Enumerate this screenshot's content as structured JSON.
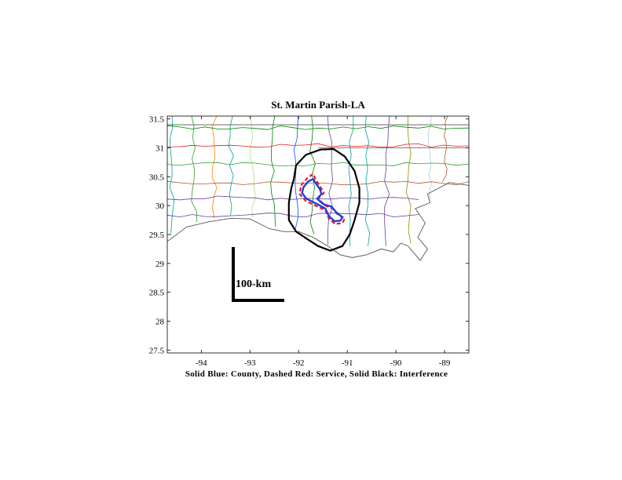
{
  "title": "St. Martin Parish-LA",
  "caption": "Solid Blue: County, Dashed Red: Service, Solid Black: Interference",
  "scale_bar_label": "100-km",
  "axes": {
    "x_ticks": [
      "-94",
      "-93",
      "-92",
      "-91",
      "-90",
      "-89"
    ],
    "y_ticks": [
      "31.5",
      "31",
      "30.5",
      "30",
      "29.5",
      "29",
      "28.5",
      "28",
      "27.5"
    ],
    "xlim": [
      -94.7,
      -88.5
    ],
    "ylim": [
      27.45,
      31.55
    ]
  },
  "contour_colors": {
    "county": "#1f3fdc",
    "service": "#e8192c",
    "interference": "#000000"
  },
  "map_data": {
    "interference": [
      [
        -92.1,
        30.45
      ],
      [
        -92.05,
        30.7
      ],
      [
        -91.85,
        30.88
      ],
      [
        -91.55,
        30.97
      ],
      [
        -91.28,
        30.98
      ],
      [
        -91.05,
        30.85
      ],
      [
        -90.85,
        30.6
      ],
      [
        -90.75,
        30.3
      ],
      [
        -90.75,
        30.05
      ],
      [
        -90.85,
        29.75
      ],
      [
        -90.95,
        29.5
      ],
      [
        -91.1,
        29.3
      ],
      [
        -91.35,
        29.22
      ],
      [
        -91.6,
        29.3
      ],
      [
        -91.82,
        29.42
      ],
      [
        -92.05,
        29.55
      ],
      [
        -92.2,
        29.75
      ],
      [
        -92.2,
        30.05
      ],
      [
        -92.15,
        30.3
      ],
      [
        -92.1,
        30.45
      ]
    ],
    "service": [
      [
        -91.95,
        30.35
      ],
      [
        -91.82,
        30.48
      ],
      [
        -91.7,
        30.55
      ],
      [
        -91.65,
        30.45
      ],
      [
        -91.55,
        30.32
      ],
      [
        -91.48,
        30.22
      ],
      [
        -91.6,
        30.12
      ],
      [
        -91.45,
        30.0
      ],
      [
        -91.3,
        29.95
      ],
      [
        -91.2,
        29.85
      ],
      [
        -91.05,
        29.78
      ],
      [
        -91.1,
        29.7
      ],
      [
        -91.25,
        29.68
      ],
      [
        -91.38,
        29.78
      ],
      [
        -91.45,
        29.92
      ],
      [
        -91.65,
        30.0
      ],
      [
        -91.85,
        30.08
      ],
      [
        -91.98,
        30.2
      ],
      [
        -91.95,
        30.35
      ]
    ],
    "county": [
      [
        -91.9,
        30.32
      ],
      [
        -91.8,
        30.42
      ],
      [
        -91.7,
        30.46
      ],
      [
        -91.64,
        30.38
      ],
      [
        -91.56,
        30.28
      ],
      [
        -91.53,
        30.2
      ],
      [
        -91.62,
        30.12
      ],
      [
        -91.5,
        30.03
      ],
      [
        -91.32,
        29.98
      ],
      [
        -91.22,
        29.88
      ],
      [
        -91.1,
        29.8
      ],
      [
        -91.14,
        29.74
      ],
      [
        -91.26,
        29.73
      ],
      [
        -91.38,
        29.82
      ],
      [
        -91.45,
        29.95
      ],
      [
        -91.65,
        30.04
      ],
      [
        -91.84,
        30.12
      ],
      [
        -91.93,
        30.22
      ],
      [
        -91.9,
        30.32
      ]
    ],
    "coastline": [
      [
        -94.7,
        29.38
      ],
      [
        -94.3,
        29.63
      ],
      [
        -93.85,
        29.72
      ],
      [
        -93.4,
        29.78
      ],
      [
        -93.0,
        29.77
      ],
      [
        -92.6,
        29.6
      ],
      [
        -92.3,
        29.55
      ],
      [
        -92.0,
        29.55
      ],
      [
        -91.7,
        29.45
      ],
      [
        -91.4,
        29.3
      ],
      [
        -91.15,
        29.15
      ],
      [
        -90.9,
        29.1
      ],
      [
        -90.6,
        29.15
      ],
      [
        -90.3,
        29.25
      ],
      [
        -90.05,
        29.2
      ],
      [
        -89.9,
        29.35
      ],
      [
        -89.75,
        29.3
      ],
      [
        -89.5,
        29.05
      ],
      [
        -89.35,
        29.25
      ],
      [
        -89.55,
        29.45
      ],
      [
        -89.4,
        29.7
      ],
      [
        -89.6,
        29.95
      ],
      [
        -89.3,
        30.05
      ],
      [
        -89.35,
        30.2
      ],
      [
        -88.9,
        30.4
      ],
      [
        -88.5,
        30.35
      ]
    ]
  }
}
